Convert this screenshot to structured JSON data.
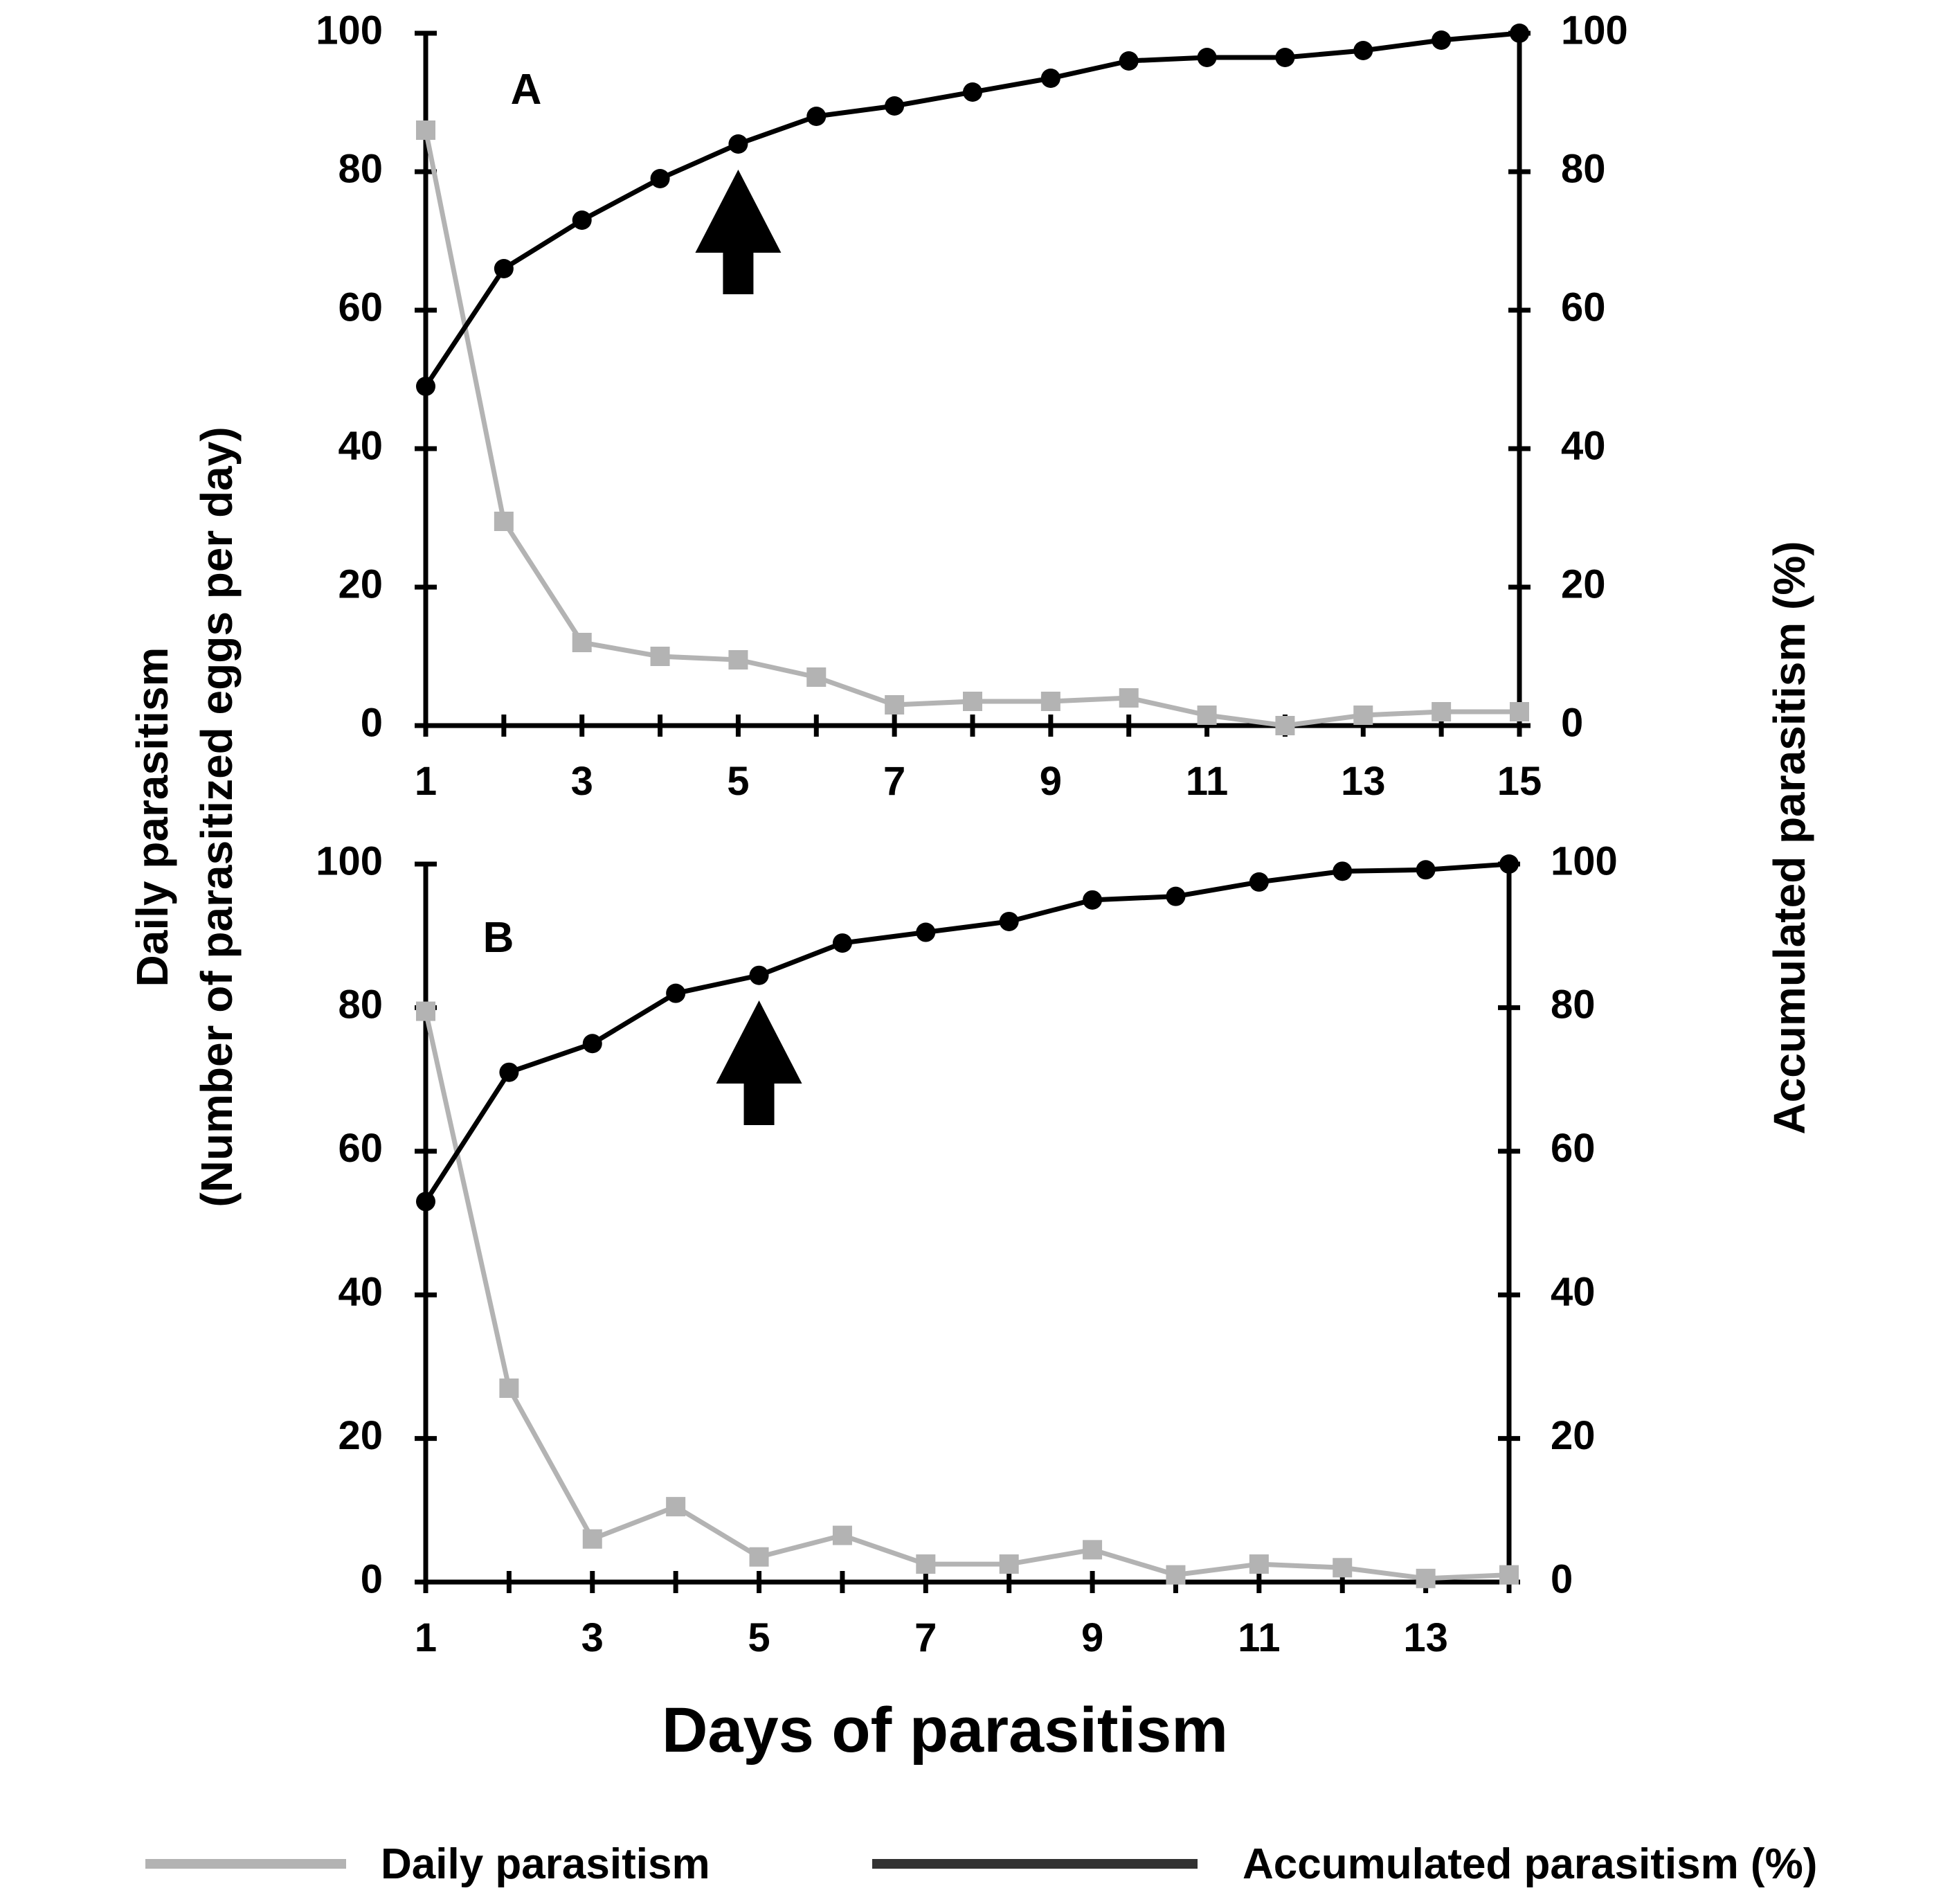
{
  "figure": {
    "ylabel_left_line1": "Daily parasitism",
    "ylabel_left_line2": "(Number of parasitized eggs per day)",
    "ylabel_right": "Accumulated parasitism (%)",
    "xlabel": "Days of parasitism"
  },
  "legend": {
    "daily_label": "Daily parasitism",
    "accumulated_label": "Accumulated parasitism (%)"
  },
  "colors": {
    "daily": "#b3b3b3",
    "accumulated": "#000000",
    "axis": "#000000"
  },
  "chart_data": [
    {
      "type": "line",
      "panel_label": "A",
      "xlim": [
        1,
        15
      ],
      "ylim": [
        0,
        100
      ],
      "x_ticks": [
        1,
        3,
        5,
        7,
        9,
        11,
        13,
        15
      ],
      "y_ticks": [
        0,
        20,
        40,
        60,
        80,
        100
      ],
      "x": [
        1,
        2,
        3,
        4,
        5,
        6,
        7,
        8,
        9,
        10,
        11,
        12,
        13,
        14,
        15
      ],
      "series": [
        {
          "name": "Daily parasitism",
          "values": [
            86,
            29.5,
            12,
            10,
            9.5,
            7,
            3,
            3.5,
            3.5,
            4,
            1.5,
            0,
            1.5,
            2,
            2
          ]
        },
        {
          "name": "Accumulated parasitism (%)",
          "values": [
            49,
            66,
            73,
            79,
            84,
            88,
            89.5,
            91.5,
            93.5,
            96,
            96.5,
            96.5,
            97.5,
            99,
            100
          ]
        }
      ],
      "annotations": [
        {
          "type": "arrow-up",
          "x": 5
        }
      ]
    },
    {
      "type": "line",
      "panel_label": "B",
      "xlim": [
        1,
        14
      ],
      "ylim": [
        0,
        100
      ],
      "x_ticks": [
        1,
        3,
        5,
        7,
        9,
        11,
        13
      ],
      "y_ticks": [
        0,
        20,
        40,
        60,
        80,
        100
      ],
      "x": [
        1,
        2,
        3,
        4,
        5,
        6,
        7,
        8,
        9,
        10,
        11,
        12,
        13,
        14
      ],
      "series": [
        {
          "name": "Daily parasitism",
          "values": [
            79.5,
            27,
            6,
            10.5,
            3.5,
            6.5,
            2.5,
            2.5,
            4.5,
            1,
            2.5,
            2,
            0.5,
            1
          ]
        },
        {
          "name": "Accumulated parasitism (%)",
          "values": [
            53,
            71,
            75,
            82,
            84.5,
            89,
            90.5,
            92,
            95,
            95.5,
            97.5,
            99,
            99.2,
            100
          ]
        }
      ],
      "annotations": [
        {
          "type": "arrow-up",
          "x": 5
        }
      ]
    }
  ]
}
